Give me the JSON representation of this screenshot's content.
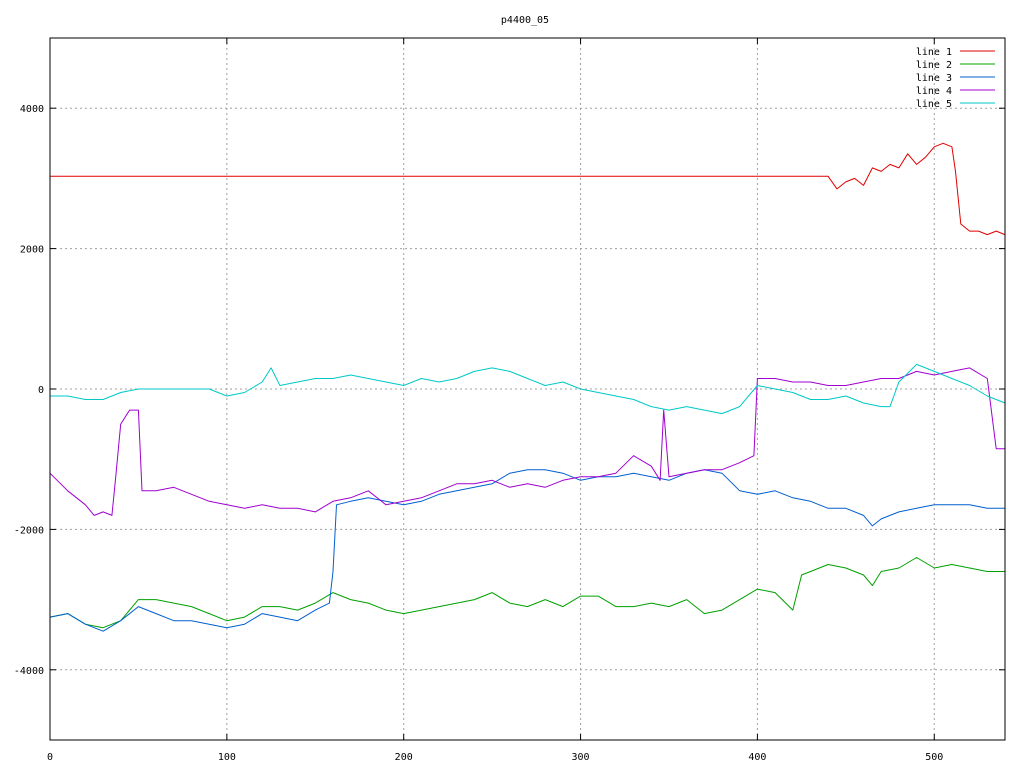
{
  "chart_data": {
    "type": "line",
    "title": "p4400_05",
    "xlabel": "",
    "ylabel": "",
    "xlim": [
      0,
      540
    ],
    "ylim": [
      -5000,
      5000
    ],
    "grid": true,
    "legend_position": "top-right",
    "x_ticks": [
      0,
      100,
      200,
      300,
      400,
      500
    ],
    "y_ticks": [
      -4000,
      -2000,
      0,
      2000,
      4000
    ],
    "x_tick_labels": [
      "0",
      "100",
      "200",
      "300",
      "400",
      "500"
    ],
    "y_tick_labels": [
      "-4000",
      "-2000",
      "0",
      "2000",
      "4000"
    ],
    "series": [
      {
        "name": "line 1",
        "color": "#e00000",
        "x": [
          0,
          100,
          200,
          300,
          400,
          440,
          445,
          450,
          455,
          460,
          465,
          470,
          475,
          480,
          485,
          490,
          495,
          500,
          505,
          510,
          512,
          515,
          520,
          525,
          530,
          535,
          540
        ],
        "y": [
          3030,
          3030,
          3030,
          3030,
          3030,
          3030,
          2850,
          2950,
          3000,
          2900,
          3150,
          3100,
          3200,
          3150,
          3350,
          3200,
          3300,
          3450,
          3500,
          3450,
          3100,
          2350,
          2250,
          2250,
          2200,
          2250,
          2200
        ]
      },
      {
        "name": "line 2",
        "color": "#00a000",
        "x": [
          0,
          10,
          20,
          30,
          40,
          50,
          60,
          70,
          80,
          90,
          100,
          110,
          120,
          130,
          140,
          150,
          160,
          170,
          180,
          190,
          200,
          210,
          220,
          230,
          240,
          250,
          260,
          270,
          280,
          290,
          300,
          310,
          320,
          330,
          340,
          350,
          360,
          370,
          380,
          390,
          400,
          410,
          420,
          425,
          430,
          440,
          450,
          460,
          465,
          470,
          480,
          490,
          500,
          510,
          520,
          530,
          540
        ],
        "y": [
          -3250,
          -3200,
          -3350,
          -3400,
          -3300,
          -3000,
          -3000,
          -3050,
          -3100,
          -3200,
          -3300,
          -3250,
          -3100,
          -3100,
          -3150,
          -3050,
          -2900,
          -3000,
          -3050,
          -3150,
          -3200,
          -3150,
          -3100,
          -3050,
          -3000,
          -2900,
          -3050,
          -3100,
          -3000,
          -3100,
          -2950,
          -2950,
          -3100,
          -3100,
          -3050,
          -3100,
          -3000,
          -3200,
          -3150,
          -3000,
          -2850,
          -2900,
          -3150,
          -2650,
          -2600,
          -2500,
          -2550,
          -2650,
          -2800,
          -2600,
          -2550,
          -2400,
          -2550,
          -2500,
          -2550,
          -2600,
          -2600
        ]
      },
      {
        "name": "line 3",
        "color": "#0060d0",
        "x": [
          0,
          10,
          20,
          30,
          40,
          50,
          60,
          70,
          80,
          90,
          100,
          110,
          120,
          130,
          140,
          150,
          158,
          160,
          162,
          170,
          180,
          190,
          200,
          210,
          220,
          230,
          240,
          250,
          260,
          270,
          280,
          290,
          300,
          310,
          320,
          330,
          340,
          350,
          360,
          370,
          380,
          390,
          400,
          410,
          420,
          430,
          440,
          450,
          460,
          465,
          470,
          480,
          490,
          500,
          510,
          520,
          530,
          540
        ],
        "y": [
          -3250,
          -3200,
          -3350,
          -3450,
          -3300,
          -3100,
          -3200,
          -3300,
          -3300,
          -3350,
          -3400,
          -3350,
          -3200,
          -3250,
          -3300,
          -3150,
          -3050,
          -2600,
          -1650,
          -1600,
          -1550,
          -1600,
          -1650,
          -1600,
          -1500,
          -1450,
          -1400,
          -1350,
          -1200,
          -1150,
          -1150,
          -1200,
          -1300,
          -1250,
          -1250,
          -1200,
          -1250,
          -1300,
          -1200,
          -1150,
          -1200,
          -1450,
          -1500,
          -1450,
          -1550,
          -1600,
          -1700,
          -1700,
          -1800,
          -1950,
          -1850,
          -1750,
          -1700,
          -1650,
          -1650,
          -1650,
          -1700,
          -1700
        ]
      },
      {
        "name": "line 4",
        "color": "#a000d0",
        "x": [
          0,
          10,
          20,
          25,
          30,
          35,
          37,
          40,
          45,
          50,
          52,
          60,
          70,
          80,
          90,
          100,
          110,
          120,
          130,
          140,
          150,
          160,
          170,
          180,
          190,
          200,
          210,
          220,
          230,
          240,
          250,
          260,
          270,
          280,
          290,
          300,
          310,
          320,
          330,
          340,
          345,
          347,
          350,
          360,
          370,
          380,
          390,
          398,
          400,
          410,
          420,
          430,
          440,
          450,
          460,
          470,
          480,
          490,
          500,
          510,
          520,
          530,
          535,
          540
        ],
        "y": [
          -1200,
          -1450,
          -1650,
          -1800,
          -1750,
          -1800,
          -1300,
          -500,
          -300,
          -300,
          -1450,
          -1450,
          -1400,
          -1500,
          -1600,
          -1650,
          -1700,
          -1650,
          -1700,
          -1700,
          -1750,
          -1600,
          -1550,
          -1450,
          -1650,
          -1600,
          -1550,
          -1450,
          -1350,
          -1350,
          -1300,
          -1400,
          -1350,
          -1400,
          -1300,
          -1250,
          -1250,
          -1200,
          -950,
          -1100,
          -1300,
          -300,
          -1250,
          -1200,
          -1150,
          -1150,
          -1050,
          -950,
          150,
          150,
          100,
          100,
          50,
          50,
          100,
          150,
          150,
          250,
          200,
          250,
          300,
          150,
          -850,
          -850
        ]
      },
      {
        "name": "line 5",
        "color": "#00c8c8",
        "x": [
          0,
          10,
          20,
          30,
          40,
          50,
          60,
          70,
          80,
          90,
          100,
          110,
          120,
          125,
          130,
          140,
          150,
          160,
          170,
          180,
          190,
          200,
          210,
          220,
          230,
          240,
          250,
          260,
          270,
          280,
          290,
          300,
          310,
          320,
          330,
          340,
          350,
          360,
          370,
          380,
          390,
          400,
          410,
          420,
          430,
          440,
          450,
          460,
          470,
          475,
          480,
          490,
          500,
          510,
          520,
          530,
          540
        ],
        "y": [
          -100,
          -100,
          -150,
          -150,
          -50,
          0,
          0,
          0,
          0,
          0,
          -100,
          -50,
          100,
          300,
          50,
          100,
          150,
          150,
          200,
          150,
          100,
          50,
          150,
          100,
          150,
          250,
          300,
          250,
          150,
          50,
          100,
          0,
          -50,
          -100,
          -150,
          -250,
          -300,
          -250,
          -300,
          -350,
          -250,
          50,
          0,
          -50,
          -150,
          -150,
          -100,
          -200,
          -250,
          -250,
          100,
          350,
          250,
          150,
          50,
          -100,
          -200
        ]
      }
    ]
  }
}
